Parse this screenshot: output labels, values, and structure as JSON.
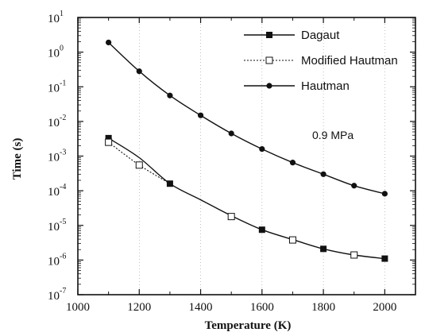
{
  "chart_data": {
    "type": "line",
    "xlabel": "Temperature (K)",
    "ylabel": "Time (s)",
    "xlim": [
      1000,
      2100
    ],
    "ylim_log10": [
      -7,
      1
    ],
    "y_scale": "log",
    "x_ticks": [
      1000,
      1200,
      1400,
      1600,
      1800,
      2000
    ],
    "x_tick_labels": [
      "1000",
      "1200",
      "1400",
      "1600",
      "1800",
      "2000"
    ],
    "y_ticks": [
      {
        "base": "10",
        "exp": "1",
        "value": 10
      },
      {
        "base": "10",
        "exp": "0",
        "value": 1
      },
      {
        "base": "10",
        "exp": "-1",
        "value": 0.1
      },
      {
        "base": "10",
        "exp": "-2",
        "value": 0.01
      },
      {
        "base": "10",
        "exp": "-3",
        "value": 0.001
      },
      {
        "base": "10",
        "exp": "-4",
        "value": 0.0001
      },
      {
        "base": "10",
        "exp": "-5",
        "value": 1e-05
      },
      {
        "base": "10",
        "exp": "-6",
        "value": 1e-06
      },
      {
        "base": "10",
        "exp": "-7",
        "value": 1e-07
      }
    ],
    "legend_position": "top-right",
    "annotation": "0.9 MPa",
    "series": [
      {
        "name": "Dagaut",
        "style": "solid",
        "marker": "filled-square",
        "x": [
          1100,
          1200,
          1300,
          1400,
          1500,
          1600,
          1700,
          1800,
          1900,
          2000
        ],
        "y": [
          0.0033,
          0.0009,
          0.00016,
          5.5e-05,
          1.9e-05,
          7.5e-06,
          3.9e-06,
          2.1e-06,
          1.4e-06,
          1.1e-06
        ],
        "marker_x": [
          1100,
          1300,
          1600,
          1800,
          2000
        ]
      },
      {
        "name": "Modified Hautman",
        "style": "dotted",
        "marker": "open-square",
        "x": [
          1100,
          1200,
          1300
        ],
        "y": [
          0.0025,
          0.00055,
          0.00016
        ],
        "marker_x": [
          1100,
          1200,
          1500,
          1700,
          1900
        ],
        "marker_y": [
          0.0025,
          0.00055,
          1.8e-05,
          3.8e-06,
          1.4e-06
        ]
      },
      {
        "name": "Hautman",
        "style": "solid",
        "marker": "filled-circle",
        "x": [
          1100,
          1200,
          1300,
          1400,
          1500,
          1600,
          1700,
          1800,
          1900,
          2000
        ],
        "y": [
          1.9,
          0.28,
          0.056,
          0.015,
          0.0045,
          0.0016,
          0.00065,
          0.0003,
          0.00014,
          8.2e-05
        ]
      }
    ]
  }
}
